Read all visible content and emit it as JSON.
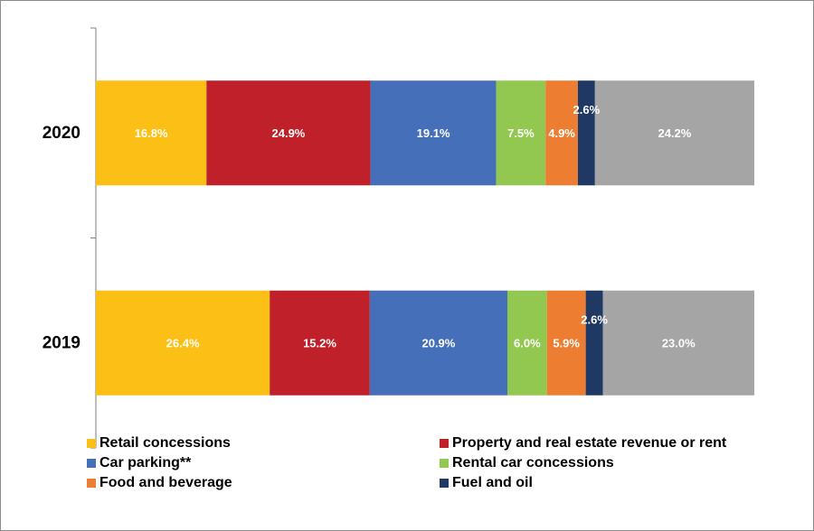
{
  "chart_data": {
    "type": "bar",
    "orientation": "horizontal",
    "stacked": true,
    "categories": [
      "2020",
      "2019"
    ],
    "series": [
      {
        "name": "Retail concessions",
        "color": "#fbbf16",
        "values": [
          16.8,
          26.4
        ],
        "labels": [
          "16.8%",
          "26.4%"
        ]
      },
      {
        "name": "Property and real estate revenue or rent",
        "color": "#c0202a",
        "values": [
          24.9,
          15.2
        ],
        "labels": [
          "24.9%",
          "15.2%"
        ]
      },
      {
        "name": "Car parking**",
        "color": "#4570b9",
        "values": [
          19.1,
          20.9
        ],
        "labels": [
          "19.1%",
          "20.9%"
        ]
      },
      {
        "name": "Rental car concessions",
        "color": "#92c84f",
        "values": [
          7.5,
          6.0
        ],
        "labels": [
          "7.5%",
          "6.0%"
        ]
      },
      {
        "name": "Food and beverage",
        "color": "#ed7d31",
        "values": [
          4.9,
          5.9
        ],
        "labels": [
          "4.9%",
          "5.9%"
        ]
      },
      {
        "name": "Fuel and oil",
        "color": "#1f3864",
        "values": [
          2.6,
          2.6
        ],
        "labels": [
          "2.6%",
          "2.6%"
        ]
      },
      {
        "name": "",
        "color": "#a6a5a5",
        "values": [
          24.2,
          23.0
        ],
        "labels": [
          "24.2%",
          "23.0%"
        ]
      }
    ],
    "xlim": [
      0,
      100
    ],
    "grid": false,
    "legend_position": "bottom"
  }
}
